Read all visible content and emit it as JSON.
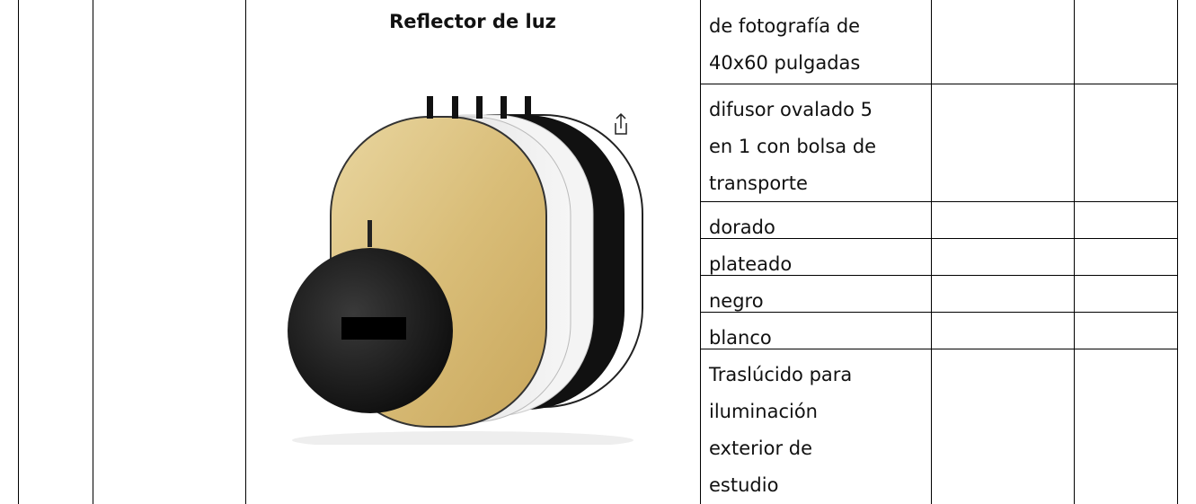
{
  "product": {
    "title": "Reflector de luz"
  },
  "table": {
    "rows": [
      {
        "lines": [
          "de fotografía de",
          "40x60 pulgadas"
        ]
      },
      {
        "lines": [
          "difusor ovalado 5",
          "en 1 con bolsa de",
          "transporte"
        ]
      },
      {
        "lines": [
          "dorado"
        ]
      },
      {
        "lines": [
          "plateado"
        ]
      },
      {
        "lines": [
          "negro"
        ]
      },
      {
        "lines": [
          "blanco"
        ]
      },
      {
        "lines": [
          "Traslúcido para",
          "iluminación",
          "exterior de",
          "estudio"
        ]
      }
    ]
  }
}
